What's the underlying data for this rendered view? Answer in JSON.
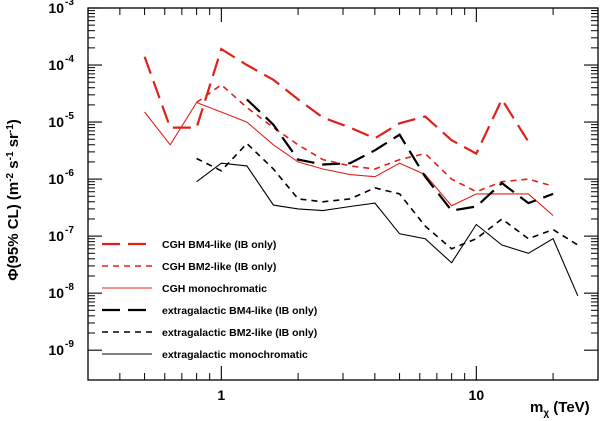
{
  "chart_data": {
    "type": "line",
    "xscale": "log",
    "yscale": "log",
    "xlim": [
      0.3,
      30
    ],
    "ylim": [
      0.0003,
      1000
    ],
    "x_ticks": [
      {
        "value": 1,
        "label": "1"
      },
      {
        "value": 10,
        "label": "10"
      }
    ],
    "y_ticks": [
      {
        "value": 1000,
        "base": "10",
        "exp": "-3"
      },
      {
        "value": 100,
        "base": "10",
        "exp": "-4"
      },
      {
        "value": 10,
        "base": "10",
        "exp": "-5"
      },
      {
        "value": 1,
        "base": "10",
        "exp": "-6"
      },
      {
        "value": 0.1,
        "base": "10",
        "exp": "-7"
      },
      {
        "value": 0.01,
        "base": "10",
        "exp": "-8"
      },
      {
        "value": 0.001,
        "base": "10",
        "exp": "-9"
      }
    ],
    "y_value_unit_note": "",
    "xlabel": {
      "main": "m",
      "sub": "χ",
      "tail": " (TeV)"
    },
    "ylabel": {
      "main": "Φ(95% CL) (m",
      "sup1": "-2",
      "mid1": " s",
      "sup2": "-1",
      "mid2": " sr",
      "sup3": "-1",
      "tail": ")"
    },
    "grid": false,
    "legend_position": "bottom-left",
    "series": [
      {
        "name": "CGH BM4-like (IB only)",
        "color": "#e0201b",
        "dash": "long",
        "width": 2.2,
        "x": [
          0.5,
          0.63,
          0.8,
          1.0,
          1.26,
          1.6,
          2.0,
          2.5,
          3.2,
          4.0,
          5.0,
          6.3,
          8.0,
          10.0,
          12.6,
          16.0
        ],
        "y": [
          140,
          8,
          8,
          190,
          100,
          55,
          25,
          12,
          8,
          5.2,
          9.5,
          12.5,
          4.8,
          2.8,
          25,
          4.5
        ]
      },
      {
        "name": "CGH BM2-like (IB only)",
        "color": "#e0201b",
        "dash": "short",
        "width": 1.6,
        "x": [
          0.8,
          1.0,
          1.26,
          1.6,
          2.0,
          2.5,
          3.2,
          4.0,
          5.0,
          6.3,
          8.0,
          10.0,
          12.6,
          16.0,
          20.0
        ],
        "y": [
          22,
          45,
          18,
          8,
          4,
          2.2,
          1.7,
          1.5,
          2.2,
          2.8,
          1.0,
          0.6,
          0.9,
          1.0,
          0.75
        ]
      },
      {
        "name": "CGH monochromatic",
        "color": "#e0201b",
        "dash": "solid",
        "width": 1.1,
        "x": [
          0.5,
          0.63,
          0.8,
          1.0,
          1.26,
          1.6,
          2.0,
          2.5,
          3.2,
          4.0,
          5.0,
          6.3,
          8.0,
          10.0,
          12.6,
          16.0,
          20.0
        ],
        "y": [
          15,
          4,
          22,
          15,
          10,
          4,
          2,
          1.5,
          1.2,
          1.1,
          1.9,
          1.2,
          0.34,
          0.55,
          0.55,
          0.55,
          0.23
        ]
      },
      {
        "name": "extragalactic BM4-like (IB only)",
        "color": "#000000",
        "dash": "long",
        "width": 2.2,
        "x": [
          1.26,
          1.6,
          2.0,
          2.5,
          3.2,
          4.0,
          5.0,
          6.3,
          8.0,
          10.0,
          12.6,
          16.0,
          20.0
        ],
        "y": [
          25,
          9,
          2.2,
          1.8,
          1.9,
          3.2,
          6.0,
          1.1,
          0.28,
          0.33,
          0.85,
          0.38,
          0.55
        ]
      },
      {
        "name": "extragalactic BM2-like (IB only)",
        "color": "#000000",
        "dash": "short",
        "width": 1.6,
        "x": [
          0.8,
          1.0,
          1.26,
          1.6,
          2.0,
          2.5,
          3.2,
          4.0,
          5.0,
          6.3,
          8.0,
          10.0,
          12.6,
          16.0,
          20.0,
          25.0
        ],
        "y": [
          2.3,
          1.4,
          4.2,
          1.5,
          0.45,
          0.4,
          0.45,
          0.7,
          0.55,
          0.15,
          0.06,
          0.09,
          0.2,
          0.09,
          0.13,
          0.07
        ]
      },
      {
        "name": "extragalactic monochromatic",
        "color": "#000000",
        "dash": "solid",
        "width": 1.1,
        "x": [
          0.8,
          1.0,
          1.26,
          1.6,
          2.0,
          2.5,
          3.2,
          4.0,
          5.0,
          6.3,
          8.0,
          10.0,
          12.6,
          16.0,
          20.0,
          25.0
        ],
        "y": [
          0.9,
          1.9,
          1.7,
          0.35,
          0.3,
          0.28,
          0.33,
          0.38,
          0.11,
          0.09,
          0.034,
          0.16,
          0.07,
          0.05,
          0.09,
          0.009
        ]
      }
    ]
  }
}
